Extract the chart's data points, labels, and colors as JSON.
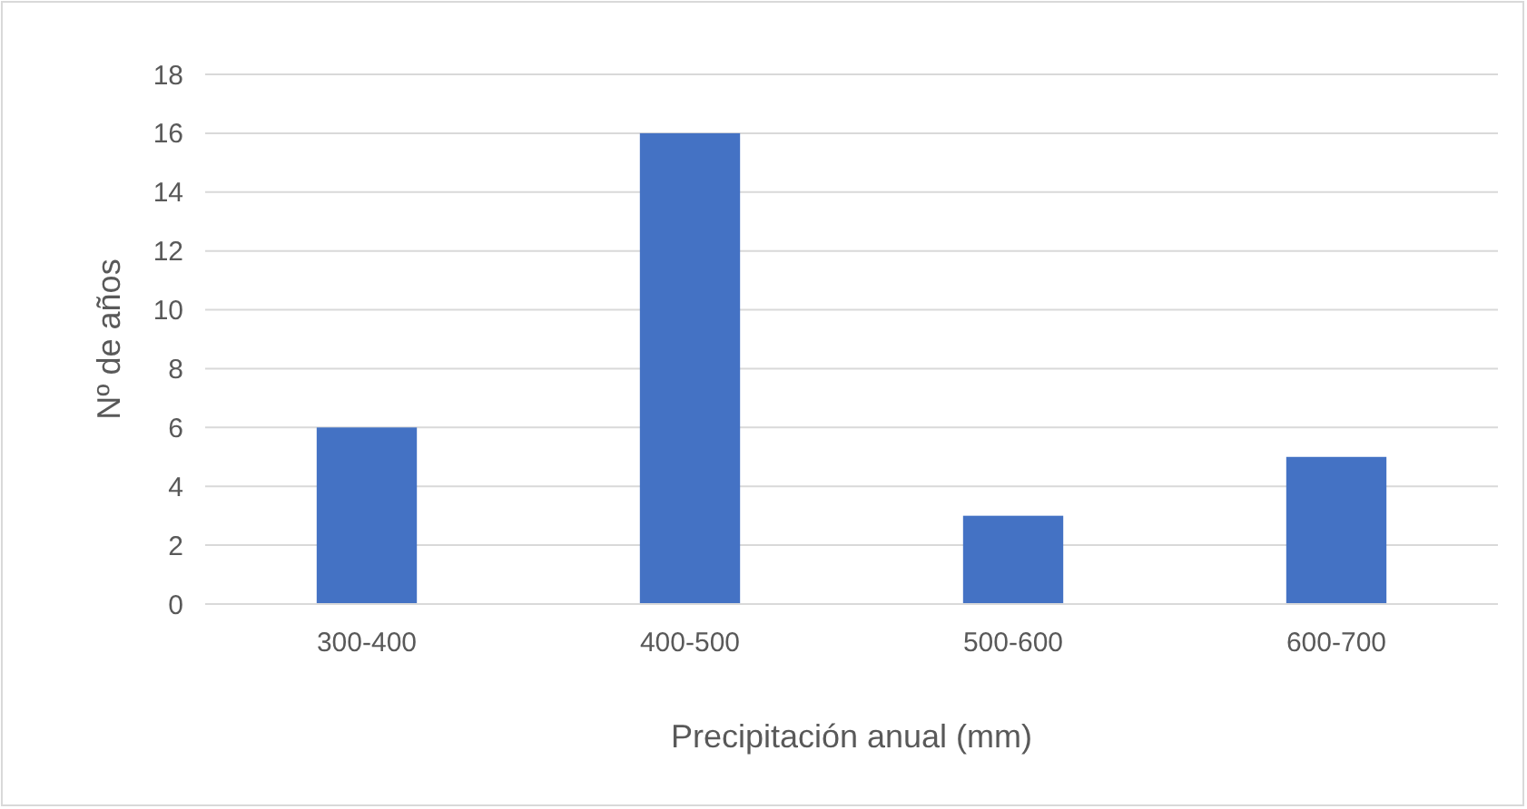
{
  "chart_data": {
    "type": "bar",
    "xlabel": "Precipitación anual (mm)",
    "ylabel": "Nº de años",
    "categories": [
      "300-400",
      "400-500",
      "500-600",
      "600-700"
    ],
    "values": [
      6,
      16,
      3,
      5
    ],
    "color": "#4472c4",
    "ylim": [
      0,
      18
    ],
    "yticks": [
      0,
      2,
      4,
      6,
      8,
      10,
      12,
      14,
      16,
      18
    ],
    "grid": "y"
  }
}
